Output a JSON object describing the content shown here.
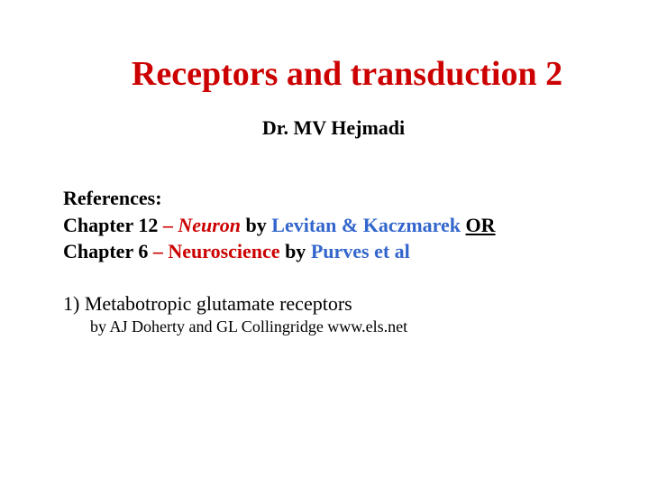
{
  "slide": {
    "title": "Receptors and transduction 2",
    "author": "Dr. MV Hejmadi",
    "references": {
      "label": "References:",
      "line1": {
        "prefix": "Chapter 12 ",
        "dash": "– ",
        "book": "Neuron ",
        "by": "by ",
        "authors": "Levitan & Kaczmarek  ",
        "or": "OR"
      },
      "line2": {
        "prefix": "Chapter 6 ",
        "dash": "–  ",
        "book": "Neuroscience ",
        "by": "by ",
        "authors": "Purves et al"
      }
    },
    "list": {
      "item1": "1)  Metabotropic glutamate receptors",
      "item1_sub": "by AJ Doherty and GL Collingridge  www.els.net"
    }
  },
  "styling": {
    "title_color": "#cc0000",
    "title_fontsize": 38,
    "author_fontsize": 22,
    "body_fontsize": 22,
    "sub_fontsize": 18,
    "background_color": "#ffffff",
    "black": "#000000",
    "red": "#cc0000",
    "blue": "#3366cc",
    "font_family": "Times New Roman"
  }
}
